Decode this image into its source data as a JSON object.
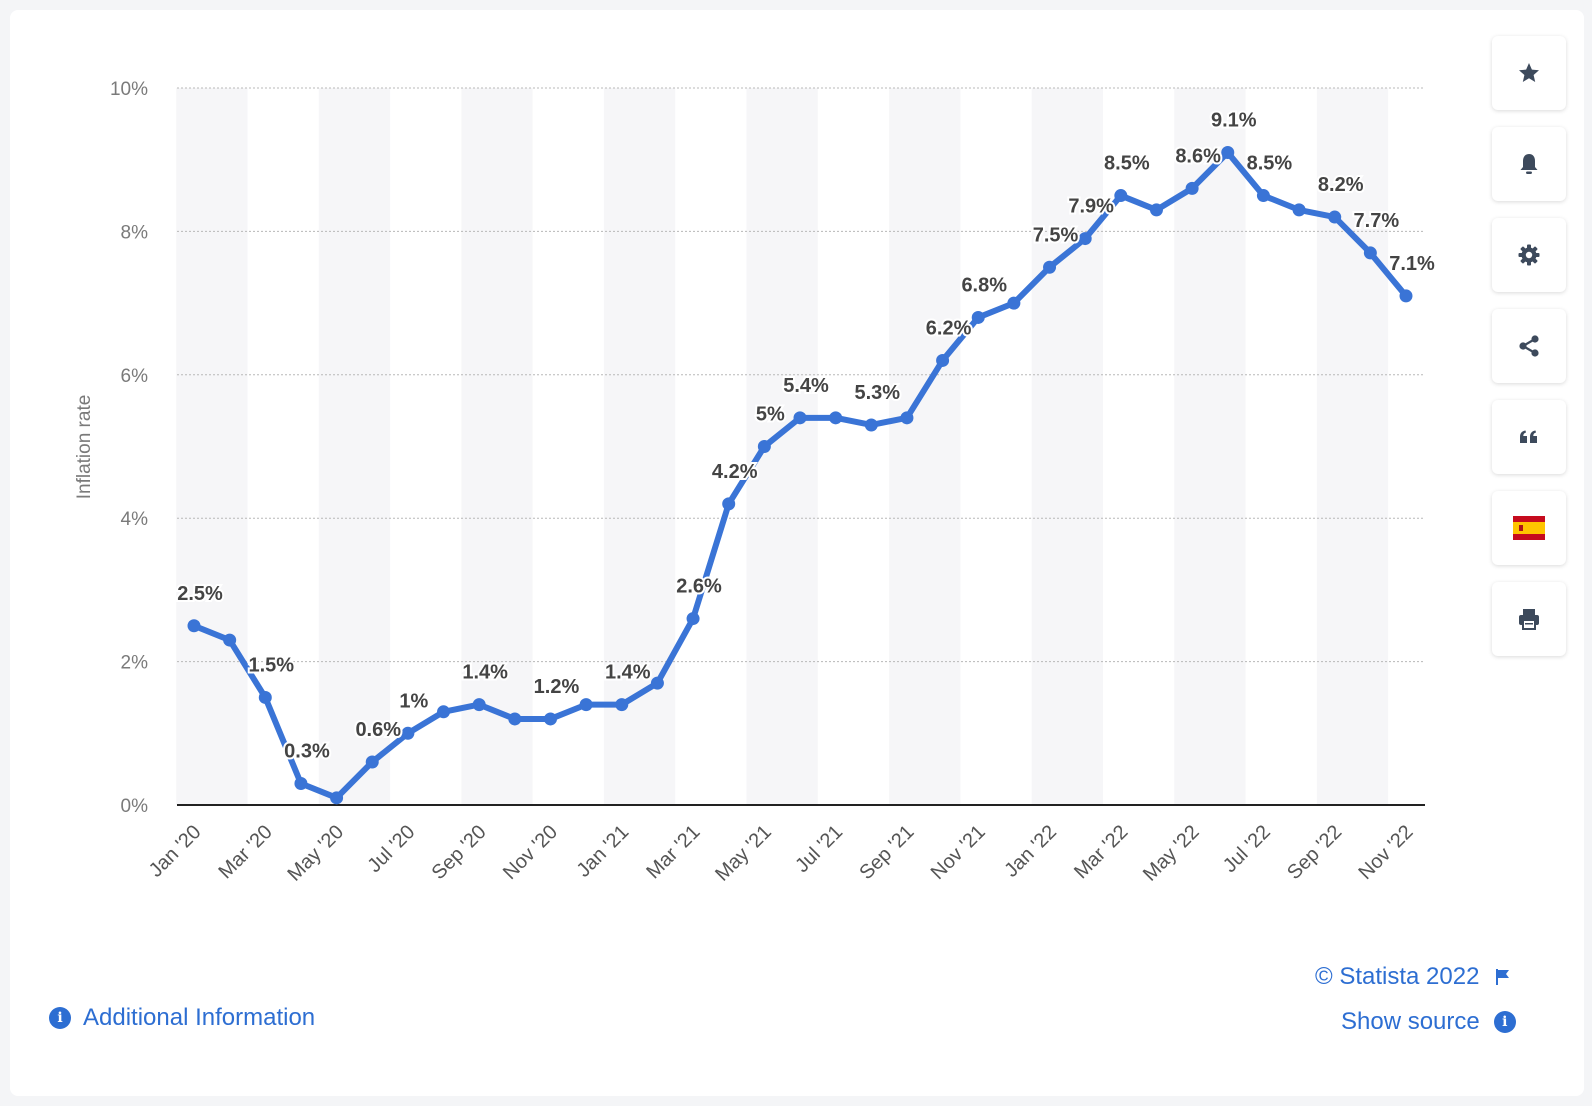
{
  "chart_data": {
    "type": "line",
    "ylabel": "Inflation rate",
    "ylim": [
      0,
      10
    ],
    "yticks": [
      0,
      2,
      4,
      6,
      8,
      10
    ],
    "ytick_labels": [
      "0%",
      "2%",
      "4%",
      "6%",
      "8%",
      "10%"
    ],
    "x": [
      "Jan '20",
      "Feb '20",
      "Mar '20",
      "Apr '20",
      "May '20",
      "Jun '20",
      "Jul '20",
      "Aug '20",
      "Sep '20",
      "Oct '20",
      "Nov '20",
      "Dec '20",
      "Jan '21",
      "Feb '21",
      "Mar '21",
      "Apr '21",
      "May '21",
      "Jun '21",
      "Jul '21",
      "Aug '21",
      "Sep '21",
      "Oct '21",
      "Nov '21",
      "Dec '21",
      "Jan '22",
      "Feb '22",
      "Mar '22",
      "Apr '22",
      "May '22",
      "Jun '22",
      "Jul '22",
      "Aug '22",
      "Sep '22",
      "Oct '22",
      "Nov '22"
    ],
    "xtick_labels": [
      "Jan '20",
      "Mar '20",
      "May '20",
      "Jul '20",
      "Sep '20",
      "Nov '20",
      "Jan '21",
      "Mar '21",
      "May '21",
      "Jul '21",
      "Sep '21",
      "Nov '21",
      "Jan '22",
      "Mar '22",
      "May '22",
      "Jul '22",
      "Sep '22",
      "Nov '22"
    ],
    "series": [
      {
        "values": [
          2.5,
          2.3,
          1.5,
          0.3,
          0.1,
          0.6,
          1.0,
          1.3,
          1.4,
          1.2,
          1.2,
          1.4,
          1.4,
          1.7,
          2.6,
          4.2,
          5.0,
          5.4,
          5.4,
          5.3,
          5.4,
          6.2,
          6.8,
          7.0,
          7.5,
          7.9,
          8.5,
          8.3,
          8.6,
          9.1,
          8.5,
          8.3,
          8.2,
          7.7,
          7.1
        ],
        "labels": [
          "2.5%",
          "",
          "1.5%",
          "0.3%",
          "",
          "0.6%",
          "1%",
          "",
          "1.4%",
          "",
          "1.2%",
          "",
          "1.4%",
          "",
          "2.6%",
          "4.2%",
          "5%",
          "5.4%",
          "",
          "5.3%",
          "",
          "6.2%",
          "6.8%",
          "",
          "7.5%",
          "7.9%",
          "8.5%",
          "",
          "8.6%",
          "9.1%",
          "8.5%",
          "",
          "8.2%",
          "7.7%",
          "7.1%"
        ],
        "color": "#3a74d6"
      }
    ],
    "grid": true,
    "grid_style": "dotted",
    "band_color": "#f6f6f8"
  },
  "sidebar": {
    "items": [
      {
        "icon": "star-icon",
        "name": "favorite-button"
      },
      {
        "icon": "bell-icon",
        "name": "notification-button"
      },
      {
        "icon": "gear-icon",
        "name": "settings-button"
      },
      {
        "icon": "share-icon",
        "name": "share-button"
      },
      {
        "icon": "quote-icon",
        "name": "cite-button"
      },
      {
        "icon": "spain-flag-icon",
        "name": "language-button"
      },
      {
        "icon": "printer-icon",
        "name": "print-button"
      }
    ],
    "icon_color": "#3d4a5c"
  },
  "footer": {
    "copyright": "© Statista 2022",
    "show_source": "Show source",
    "additional_info": "Additional Information",
    "link_color": "#2d6ed2"
  }
}
